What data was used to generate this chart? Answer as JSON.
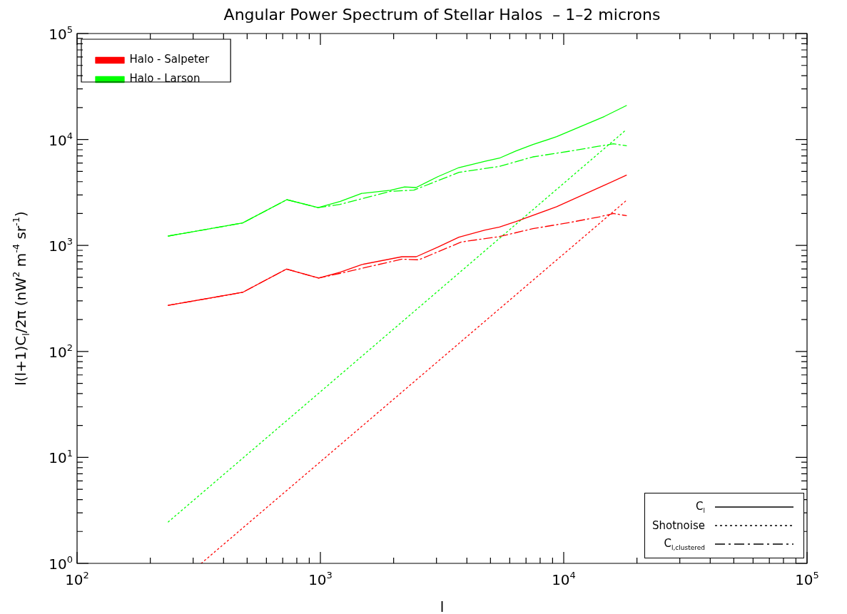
{
  "chart_data": {
    "type": "line",
    "title": "Angular Power Spectrum of Stellar Halos  – 1–2 microns",
    "xlabel": "l",
    "ylabel": "l(l+1)C$_{l}$/2π (nW$^{2}$ m$^{-4}$ sr$^{-1}$)",
    "log": "xy",
    "grid": false,
    "legend": "top left",
    "marker": "none",
    "xlim": [
      100,
      100000
    ],
    "ylim": [
      1,
      100000
    ],
    "xticks": [
      {
        "value": 100,
        "label": "10$^{2}$"
      },
      {
        "value": 200,
        "label": null
      },
      {
        "value": 300,
        "label": null
      },
      {
        "value": 400,
        "label": null
      },
      {
        "value": 500,
        "label": null
      },
      {
        "value": 600,
        "label": null
      },
      {
        "value": 700,
        "label": null
      },
      {
        "value": 800,
        "label": null
      },
      {
        "value": 900,
        "label": null
      },
      {
        "value": 1000,
        "label": "10$^{3}$"
      },
      {
        "value": 2000,
        "label": null
      },
      {
        "value": 3000,
        "label": null
      },
      {
        "value": 4000,
        "label": null
      },
      {
        "value": 5000,
        "label": null
      },
      {
        "value": 6000,
        "label": null
      },
      {
        "value": 7000,
        "label": null
      },
      {
        "value": 8000,
        "label": null
      },
      {
        "value": 9000,
        "label": null
      },
      {
        "value": 10000,
        "label": "10$^{4}$"
      },
      {
        "value": 20000,
        "label": null
      },
      {
        "value": 30000,
        "label": null
      },
      {
        "value": 40000,
        "label": null
      },
      {
        "value": 50000,
        "label": null
      },
      {
        "value": 60000,
        "label": null
      },
      {
        "value": 70000,
        "label": null
      },
      {
        "value": 80000,
        "label": null
      },
      {
        "value": 90000,
        "label": null
      },
      {
        "value": 100000,
        "label": "10$^{5}$"
      }
    ],
    "yticks": [
      {
        "value": 1,
        "label": "10$^{0}$"
      },
      {
        "value": 2,
        "label": null
      },
      {
        "value": 3,
        "label": null
      },
      {
        "value": 4,
        "label": null
      },
      {
        "value": 5,
        "label": null
      },
      {
        "value": 6,
        "label": null
      },
      {
        "value": 7,
        "label": null
      },
      {
        "value": 8,
        "label": null
      },
      {
        "value": 9,
        "label": null
      },
      {
        "value": 10,
        "label": "10$^{1}$"
      },
      {
        "value": 20,
        "label": null
      },
      {
        "value": 30,
        "label": null
      },
      {
        "value": 40,
        "label": null
      },
      {
        "value": 50,
        "label": null
      },
      {
        "value": 60,
        "label": null
      },
      {
        "value": 70,
        "label": null
      },
      {
        "value": 80,
        "label": null
      },
      {
        "value": 90,
        "label": null
      },
      {
        "value": 100,
        "label": "10$^{2}$"
      },
      {
        "value": 200,
        "label": null
      },
      {
        "value": 300,
        "label": null
      },
      {
        "value": 400,
        "label": null
      },
      {
        "value": 500,
        "label": null
      },
      {
        "value": 600,
        "label": null
      },
      {
        "value": 700,
        "label": null
      },
      {
        "value": 800,
        "label": null
      },
      {
        "value": 900,
        "label": null
      },
      {
        "value": 1000,
        "label": "10$^{3}$"
      },
      {
        "value": 2000,
        "label": null
      },
      {
        "value": 3000,
        "label": null
      },
      {
        "value": 4000,
        "label": null
      },
      {
        "value": 5000,
        "label": null
      },
      {
        "value": 6000,
        "label": null
      },
      {
        "value": 7000,
        "label": null
      },
      {
        "value": 8000,
        "label": null
      },
      {
        "value": 9000,
        "label": null
      },
      {
        "value": 10000,
        "label": "10$^{4}$"
      },
      {
        "value": 20000,
        "label": null
      },
      {
        "value": 30000,
        "label": null
      },
      {
        "value": 40000,
        "label": null
      },
      {
        "value": 50000,
        "label": null
      },
      {
        "value": 60000,
        "label": null
      },
      {
        "value": 70000,
        "label": null
      },
      {
        "value": 80000,
        "label": null
      },
      {
        "value": 90000,
        "label": null
      },
      {
        "value": 100000,
        "label": "10$^{5}$"
      }
    ],
    "series": [
      {
        "name": "Halo - Salpeter",
        "color": "#ff0000",
        "line_style": "solid",
        "x": [
          237,
          479,
          726,
          984,
          1208,
          1476,
          2163,
          2477,
          3034,
          3707,
          4745,
          5445,
          6370,
          9350,
          14660,
          18100
        ],
        "values": [
          272,
          361,
          599,
          492,
          560,
          660,
          783,
          783,
          962,
          1195,
          1395,
          1494,
          1682,
          2318,
          3690,
          4600
        ]
      },
      {
        "color": "#ff0000",
        "line_style": "dotted",
        "x": [
          324,
          1000,
          18100
        ],
        "values": [
          1,
          9.1,
          2660
        ]
      },
      {
        "color": "#ff0000",
        "line_style": "dashdot",
        "x": [
          237,
          479,
          726,
          984,
          1208,
          2163,
          2540,
          3467,
          3800,
          5445,
          7465,
          10700,
          14030,
          16030,
          18100
        ],
        "values": [
          272,
          361,
          599,
          492,
          546,
          743,
          732,
          988,
          1079,
          1213,
          1439,
          1655,
          1863,
          2004,
          1909
        ]
      },
      {
        "name": "Halo - Larson",
        "color": "#00ff00",
        "line_style": "solid",
        "x": [
          237,
          479,
          728,
          979,
          1208,
          1479,
          1937,
          2218,
          2473,
          3027,
          3707,
          4753,
          5445,
          6370,
          7480,
          9350,
          14700,
          18100
        ],
        "values": [
          1227,
          1630,
          2704,
          2275,
          2610,
          3100,
          3310,
          3570,
          3520,
          4440,
          5430,
          6240,
          6670,
          7790,
          8960,
          10620,
          16500,
          20900
        ]
      },
      {
        "color": "#00ff00",
        "line_style": "dotted",
        "x": [
          237,
          1000,
          18100
        ],
        "values": [
          2.46,
          41.6,
          12400
        ]
      },
      {
        "color": "#00ff00",
        "line_style": "dashdot",
        "x": [
          237,
          479,
          728,
          979,
          1205,
          1935,
          2420,
          3715,
          5445,
          7465,
          10700,
          14000,
          16000,
          18100
        ],
        "values": [
          1227,
          1630,
          2704,
          2275,
          2440,
          3240,
          3325,
          4900,
          5575,
          6850,
          7790,
          8650,
          9100,
          8740
        ]
      }
    ],
    "annotations": [
      "C$_{l}$",
      "Shotnoise",
      "C$_{l,clustered}$"
    ]
  }
}
